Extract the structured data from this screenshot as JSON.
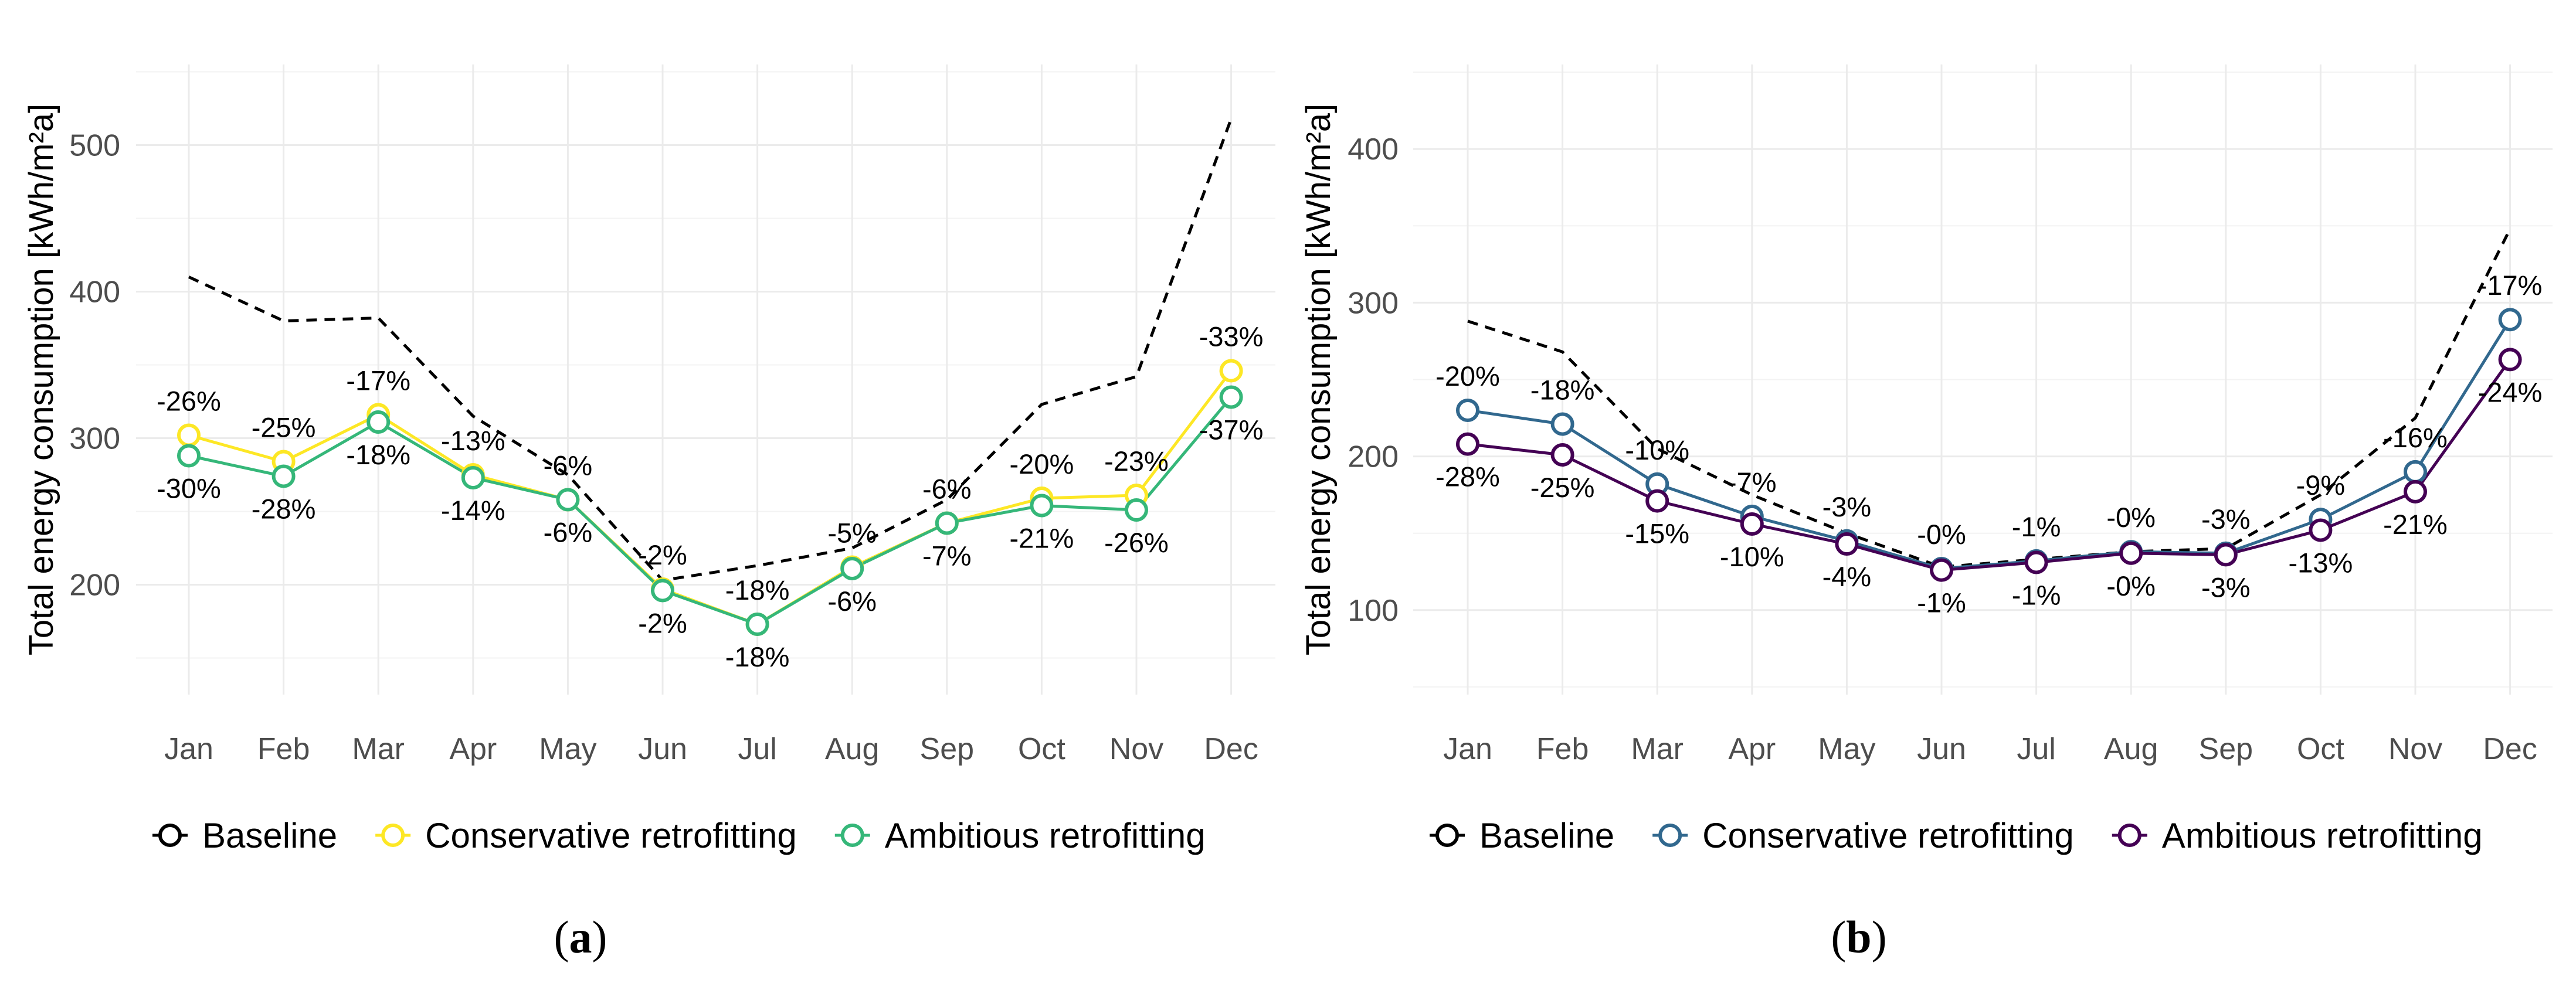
{
  "chart_data": [
    {
      "type": "line",
      "panel_label": "a",
      "ylabel": "Total energy consumption [kWh/m²a]",
      "xlabel": "",
      "categories": [
        "Jan",
        "Feb",
        "Mar",
        "Apr",
        "May",
        "Jun",
        "Jul",
        "Aug",
        "Sep",
        "Oct",
        "Nov",
        "Dec"
      ],
      "ylim": [
        125,
        555
      ],
      "yticks": [
        200,
        300,
        400,
        500
      ],
      "grid": true,
      "legend_position": "bottom",
      "series": [
        {
          "name": "Baseline",
          "style": "dashed",
          "markers": false,
          "color": "#000000",
          "values": [
            410,
            380,
            382,
            315,
            275,
            203,
            213,
            225,
            258,
            323,
            342,
            518
          ]
        },
        {
          "name": "Conservative retrofitting",
          "style": "solid",
          "markers": true,
          "color": "#FDE725",
          "values": [
            302,
            284,
            316,
            275,
            258,
            197,
            173,
            212,
            242,
            259,
            261,
            346
          ],
          "labels": [
            "-26%",
            "-25%",
            "-17%",
            "-13%",
            "-6%",
            "-2%",
            "-18%",
            "-5%",
            "-6%",
            "-20%",
            "-23%",
            "-33%"
          ],
          "label_side": "above"
        },
        {
          "name": "Ambitious retrofitting",
          "style": "solid",
          "markers": true,
          "color": "#35B779",
          "values": [
            288,
            274,
            311,
            273,
            258,
            196,
            173,
            211,
            242,
            254,
            251,
            328
          ],
          "labels": [
            "-30%",
            "-28%",
            "-18%",
            "-14%",
            "-6%",
            "-2%",
            "-18%",
            "-6%",
            "-7%",
            "-21%",
            "-26%",
            "-37%"
          ],
          "label_side": "below"
        }
      ]
    },
    {
      "type": "line",
      "panel_label": "b",
      "ylabel": "Total energy consumption [kWh/m²a]",
      "xlabel": "",
      "categories": [
        "Jan",
        "Feb",
        "Mar",
        "Apr",
        "May",
        "Jun",
        "Jul",
        "Aug",
        "Sep",
        "Oct",
        "Nov",
        "Dec"
      ],
      "ylim": [
        45,
        455
      ],
      "yticks": [
        100,
        200,
        300,
        400
      ],
      "grid": true,
      "legend_position": "bottom",
      "series": [
        {
          "name": "Baseline",
          "style": "dashed",
          "markers": false,
          "color": "#000000",
          "values": [
            288,
            268,
            205,
            175,
            150,
            128,
            133,
            138,
            140,
            175,
            225,
            348
          ]
        },
        {
          "name": "Conservative retrofitting",
          "style": "solid",
          "markers": true,
          "color": "#31688E",
          "values": [
            230,
            221,
            182,
            161,
            145,
            127,
            132,
            138,
            137,
            159,
            190,
            289
          ],
          "labels": [
            "-20%",
            "-18%",
            "-10%",
            "-7%",
            "-3%",
            "-0%",
            "-1%",
            "-0%",
            "-3%",
            "-9%",
            "-16%",
            "-17%"
          ],
          "label_side": "above"
        },
        {
          "name": "Ambitious retrofitting",
          "style": "solid",
          "markers": true,
          "color": "#440154",
          "values": [
            208,
            201,
            171,
            156,
            143,
            126,
            131,
            137,
            136,
            152,
            177,
            263
          ],
          "labels": [
            "-28%",
            "-25%",
            "-15%",
            "-10%",
            "-4%",
            "-1%",
            "-1%",
            "-0%",
            "-3%",
            "-13%",
            "-21%",
            "-24%"
          ],
          "label_side": "below"
        }
      ]
    }
  ]
}
